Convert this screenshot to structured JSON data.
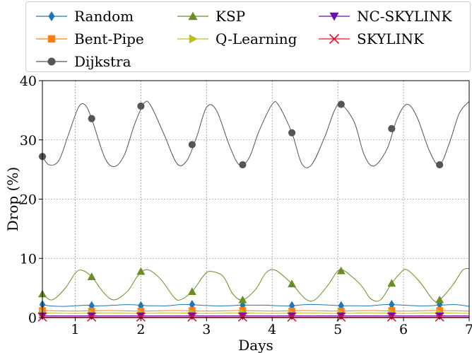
{
  "chart_data": {
    "type": "line",
    "xlabel": "Days",
    "ylabel": "Drop (%)",
    "xlim": [
      0.5,
      7
    ],
    "ylim": [
      0,
      40
    ],
    "xticks": [
      "1",
      "2",
      "3",
      "4",
      "5",
      "6",
      "7"
    ],
    "yticks": [
      "0",
      "10",
      "20",
      "30",
      "40"
    ],
    "grid": true,
    "legend_position": "top",
    "series": [
      {
        "name": "Random",
        "color": "#1f77b4",
        "marker": "diamond",
        "x": [
          0.5,
          0.6,
          0.8,
          1.0,
          1.2,
          1.25,
          1.4,
          1.6,
          1.8,
          2.0,
          2.1,
          2.2,
          2.4,
          2.6,
          2.78,
          2.9,
          3.1,
          3.3,
          3.5,
          3.55,
          3.7,
          3.9,
          4.1,
          4.3,
          4.5,
          4.7,
          4.9,
          5.05,
          5.3,
          5.5,
          5.7,
          5.82,
          6.0,
          6.2,
          6.4,
          6.55,
          6.8,
          7.0
        ],
        "y": [
          2.2,
          2.0,
          1.9,
          2.0,
          2.1,
          2.0,
          2.0,
          2.1,
          2.2,
          2.1,
          2.0,
          2.0,
          2.0,
          2.2,
          2.2,
          2.1,
          2.0,
          2.0,
          2.1,
          2.1,
          2.1,
          2.1,
          2.0,
          2.0,
          2.2,
          2.2,
          2.1,
          2.0,
          2.0,
          2.0,
          2.2,
          2.2,
          2.1,
          2.0,
          2.0,
          2.1,
          2.2,
          1.9
        ],
        "marker_x": [
          0.5,
          1.25,
          2.0,
          2.78,
          3.55,
          4.3,
          5.05,
          5.82,
          6.55
        ],
        "marker_y": [
          2.2,
          2.0,
          2.0,
          2.2,
          2.1,
          2.0,
          2.0,
          2.2,
          2.2
        ]
      },
      {
        "name": "Bent-Pipe",
        "color": "#ff7f0e",
        "marker": "square",
        "x": [
          0.5,
          1.0,
          1.5,
          2.0,
          2.5,
          3.0,
          3.5,
          4.0,
          4.5,
          5.0,
          5.5,
          6.0,
          6.5,
          7.0
        ],
        "y": [
          1.2,
          1.1,
          1.2,
          1.1,
          1.2,
          1.1,
          1.2,
          1.1,
          1.2,
          1.1,
          1.2,
          1.1,
          1.2,
          1.1
        ],
        "marker_x": [
          0.5,
          1.25,
          2.0,
          2.78,
          3.55,
          4.3,
          5.05,
          5.82,
          6.55
        ],
        "marker_y": [
          1.2,
          1.1,
          1.1,
          1.2,
          1.2,
          1.1,
          1.1,
          1.2,
          1.2
        ]
      },
      {
        "name": "Dijkstra",
        "color": "#555555",
        "marker": "circle",
        "x": [
          0.5,
          0.6,
          0.75,
          0.9,
          1.05,
          1.15,
          1.25,
          1.45,
          1.6,
          1.75,
          1.9,
          2.05,
          2.15,
          2.35,
          2.55,
          2.7,
          2.85,
          3.0,
          3.15,
          3.35,
          3.5,
          3.65,
          3.8,
          4.0,
          4.1,
          4.3,
          4.45,
          4.6,
          4.8,
          4.95,
          5.05,
          5.25,
          5.4,
          5.55,
          5.75,
          5.9,
          6.05,
          6.2,
          6.4,
          6.55,
          6.7,
          6.85,
          7.0
        ],
        "y": [
          27.2,
          25.8,
          26.5,
          31.0,
          35.5,
          35.9,
          33.6,
          27.0,
          25.5,
          27.5,
          32.5,
          36.2,
          35.8,
          31.0,
          26.0,
          26.5,
          30.5,
          35.5,
          35.0,
          29.0,
          25.8,
          27.0,
          31.5,
          36.0,
          35.8,
          31.2,
          26.0,
          25.8,
          30.5,
          35.0,
          36.0,
          33.0,
          27.5,
          25.6,
          28.5,
          33.5,
          36.0,
          34.0,
          28.0,
          25.8,
          29.5,
          34.5,
          36.5
        ],
        "marker_x": [
          0.5,
          1.25,
          2.0,
          2.78,
          3.55,
          4.3,
          5.05,
          5.82,
          6.55
        ],
        "marker_y": [
          27.2,
          33.6,
          35.7,
          29.2,
          25.8,
          31.2,
          36.0,
          31.9,
          25.8
        ]
      },
      {
        "name": "KSP",
        "color": "#6b8e23",
        "marker": "triangle-up",
        "x": [
          0.5,
          0.65,
          0.85,
          1.0,
          1.1,
          1.25,
          1.45,
          1.6,
          1.8,
          1.95,
          2.1,
          2.3,
          2.5,
          2.6,
          2.78,
          2.95,
          3.05,
          3.25,
          3.4,
          3.55,
          3.75,
          3.9,
          4.05,
          4.3,
          4.5,
          4.65,
          4.85,
          5.0,
          5.1,
          5.35,
          5.5,
          5.65,
          5.82,
          5.95,
          6.05,
          6.25,
          6.45,
          6.55,
          6.75,
          6.9,
          7.0
        ],
        "y": [
          4.0,
          3.0,
          5.0,
          7.5,
          8.0,
          6.9,
          4.0,
          3.0,
          4.5,
          7.0,
          8.1,
          6.5,
          3.5,
          3.0,
          4.4,
          7.0,
          7.8,
          7.0,
          4.0,
          3.0,
          4.8,
          7.5,
          8.0,
          5.7,
          3.2,
          3.0,
          5.5,
          7.9,
          7.9,
          5.5,
          3.2,
          3.0,
          5.8,
          7.5,
          8.1,
          6.0,
          3.0,
          3.0,
          5.5,
          8.0,
          8.3
        ],
        "marker_x": [
          0.5,
          1.25,
          2.0,
          2.78,
          3.55,
          4.3,
          5.05,
          5.82,
          6.55
        ],
        "marker_y": [
          4.0,
          6.9,
          7.8,
          4.4,
          3.0,
          5.7,
          7.9,
          5.8,
          3.0
        ]
      },
      {
        "name": "Q-Learning",
        "color": "#bcbd22",
        "marker": "triangle-right",
        "x": [
          0.5,
          1.0,
          1.5,
          2.0,
          2.5,
          3.0,
          3.5,
          4.0,
          4.5,
          5.0,
          5.5,
          6.0,
          6.5,
          7.0
        ],
        "y": [
          0.8,
          0.7,
          0.8,
          0.7,
          0.8,
          0.7,
          0.8,
          0.7,
          0.8,
          0.7,
          0.8,
          0.7,
          0.8,
          0.7
        ],
        "marker_x": [
          0.5,
          1.25,
          2.0,
          2.78,
          3.55,
          4.3,
          5.05,
          5.82,
          6.55
        ],
        "marker_y": [
          0.8,
          0.7,
          0.7,
          0.8,
          0.8,
          0.7,
          0.7,
          0.8,
          0.8
        ]
      },
      {
        "name": "NC-SKYLINK",
        "color": "#6a0dad",
        "marker": "triangle-down",
        "x": [
          0.5,
          1.0,
          1.5,
          2.0,
          2.5,
          3.0,
          3.5,
          4.0,
          4.5,
          5.0,
          5.5,
          6.0,
          6.5,
          7.0
        ],
        "y": [
          0.3,
          0.3,
          0.3,
          0.3,
          0.3,
          0.3,
          0.3,
          0.3,
          0.3,
          0.3,
          0.3,
          0.3,
          0.3,
          0.3
        ],
        "marker_x": [
          0.5,
          1.25,
          2.0,
          2.78,
          3.55,
          4.3,
          5.05,
          5.82,
          6.55
        ],
        "marker_y": [
          0.3,
          0.3,
          0.3,
          0.3,
          0.3,
          0.3,
          0.3,
          0.3,
          0.3
        ]
      },
      {
        "name": "SKYLINK",
        "color": "#e8112d",
        "marker": "x",
        "x": [
          0.5,
          1.0,
          1.5,
          2.0,
          2.5,
          3.0,
          3.5,
          4.0,
          4.5,
          5.0,
          5.5,
          6.0,
          6.5,
          7.0
        ],
        "y": [
          0.1,
          0.1,
          0.1,
          0.1,
          0.1,
          0.1,
          0.1,
          0.1,
          0.1,
          0.1,
          0.1,
          0.1,
          0.1,
          0.1
        ],
        "marker_x": [
          0.5,
          1.25,
          2.0,
          2.78,
          3.55,
          4.3,
          5.05,
          5.82,
          6.55
        ],
        "marker_y": [
          0.1,
          0.1,
          0.1,
          0.1,
          0.1,
          0.1,
          0.1,
          0.1,
          0.1
        ]
      }
    ]
  }
}
